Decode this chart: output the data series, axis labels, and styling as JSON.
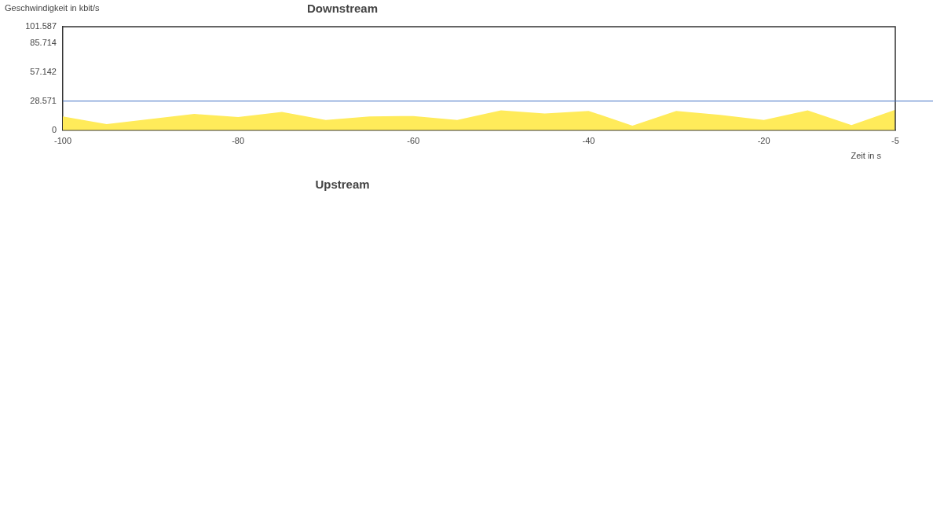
{
  "chart_data": {
    "type": "area",
    "title": "Downstream",
    "ylabel": "Geschwindigkeit in kbit/s",
    "xlabel": "Zeit in s",
    "annotations": [
      "Upstream"
    ],
    "x": [
      -100,
      -95,
      -90,
      -85,
      -80,
      -75,
      -70,
      -65,
      -60,
      -55,
      -50,
      -45,
      -40,
      -35,
      -30,
      -25,
      -20,
      -15,
      -10,
      -5
    ],
    "series": [
      {
        "color": "#ffeb5a",
        "values": [
          13.5,
          6,
          11,
          16,
          13,
          18,
          10,
          13.5,
          14,
          10,
          19.5,
          16.5,
          19,
          4.5,
          19,
          15,
          10,
          19.5,
          5,
          20
        ]
      }
    ],
    "xlim": [
      -100,
      -5
    ],
    "xticks": [
      -100,
      -80,
      -60,
      -40,
      -20,
      -5
    ],
    "ylim": [
      0,
      101.587
    ],
    "yticks": [
      0,
      28.571,
      57.142,
      85.714,
      101.587
    ],
    "ref_lines": [
      {
        "axis": "y",
        "value": 28.571,
        "color": "#4472c4"
      }
    ],
    "grid": false,
    "legend": false,
    "marker": "none"
  }
}
